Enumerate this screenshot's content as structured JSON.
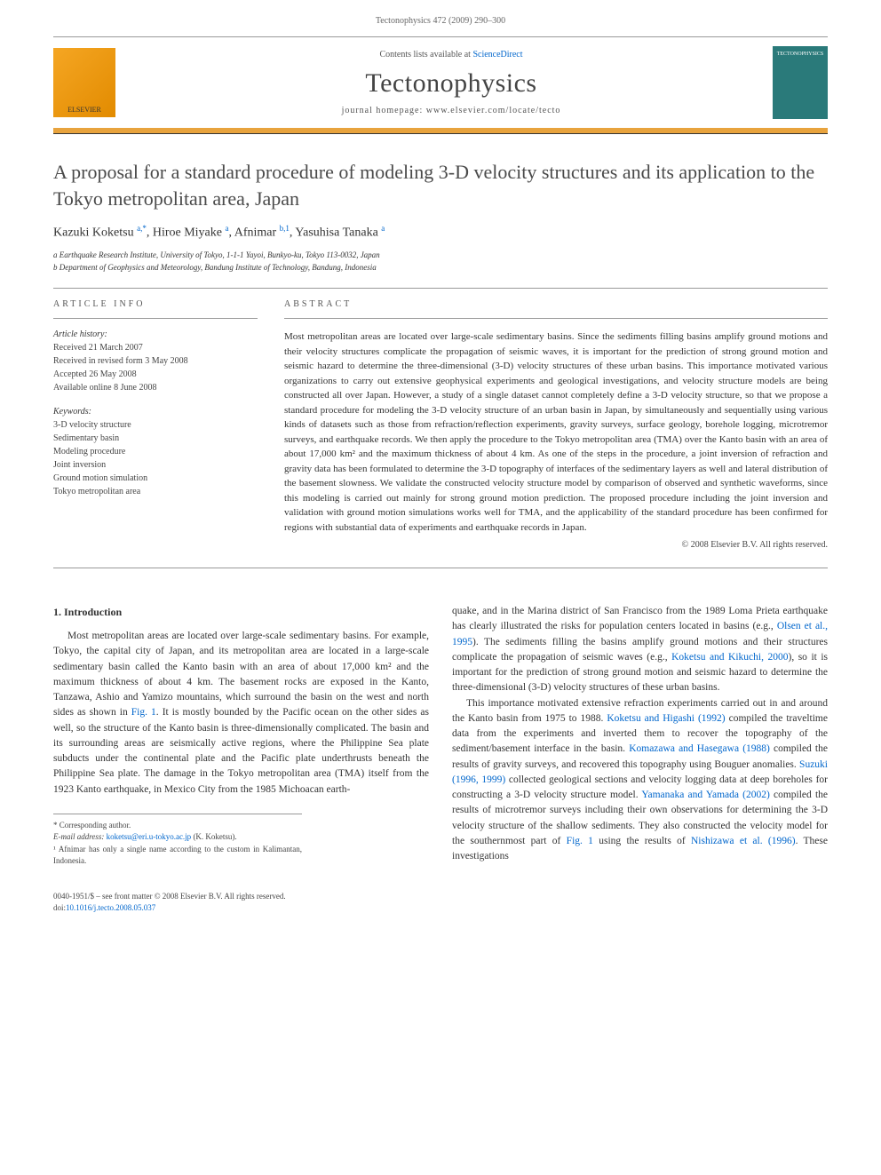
{
  "header": {
    "running_head": "Tectonophysics 472 (2009) 290–300"
  },
  "banner": {
    "elsevier_logo_label": "ELSEVIER",
    "contents_prefix": "Contents lists available at ",
    "contents_link": "ScienceDirect",
    "journal_name": "Tectonophysics",
    "homepage_prefix": "journal homepage: ",
    "homepage_url": "www.elsevier.com/locate/tecto",
    "cover_label": "TECTONOPHYSICS"
  },
  "article": {
    "title": "A proposal for a standard procedure of modeling 3-D velocity structures and its application to the Tokyo metropolitan area, Japan",
    "authors": [
      {
        "name": "Kazuki Koketsu",
        "sup": "a,*"
      },
      {
        "name": "Hiroe Miyake",
        "sup": "a"
      },
      {
        "name": "Afnimar",
        "sup": "b,1"
      },
      {
        "name": "Yasuhisa Tanaka",
        "sup": "a"
      }
    ],
    "affiliations": [
      "a Earthquake Research Institute, University of Tokyo, 1-1-1 Yayoi, Bunkyo-ku, Tokyo 113-0032, Japan",
      "b Department of Geophysics and Meteorology, Bandung Institute of Technology, Bandung, Indonesia"
    ]
  },
  "info": {
    "heading": "ARTICLE INFO",
    "history_label": "Article history:",
    "history": [
      "Received 21 March 2007",
      "Received in revised form 3 May 2008",
      "Accepted 26 May 2008",
      "Available online 8 June 2008"
    ],
    "keywords_label": "Keywords:",
    "keywords": [
      "3-D velocity structure",
      "Sedimentary basin",
      "Modeling procedure",
      "Joint inversion",
      "Ground motion simulation",
      "Tokyo metropolitan area"
    ]
  },
  "abstract": {
    "heading": "ABSTRACT",
    "text": "Most metropolitan areas are located over large-scale sedimentary basins. Since the sediments filling basins amplify ground motions and their velocity structures complicate the propagation of seismic waves, it is important for the prediction of strong ground motion and seismic hazard to determine the three-dimensional (3-D) velocity structures of these urban basins. This importance motivated various organizations to carry out extensive geophysical experiments and geological investigations, and velocity structure models are being constructed all over Japan. However, a study of a single dataset cannot completely define a 3-D velocity structure, so that we propose a standard procedure for modeling the 3-D velocity structure of an urban basin in Japan, by simultaneously and sequentially using various kinds of datasets such as those from refraction/reflection experiments, gravity surveys, surface geology, borehole logging, microtremor surveys, and earthquake records. We then apply the procedure to the Tokyo metropolitan area (TMA) over the Kanto basin with an area of about 17,000 km² and the maximum thickness of about 4 km. As one of the steps in the procedure, a joint inversion of refraction and gravity data has been formulated to determine the 3-D topography of interfaces of the sedimentary layers as well and lateral distribution of the basement slowness. We validate the constructed velocity structure model by comparison of observed and synthetic waveforms, since this modeling is carried out mainly for strong ground motion prediction. The proposed procedure including the joint inversion and validation with ground motion simulations works well for TMA, and the applicability of the standard procedure has been confirmed for regions with substantial data of experiments and earthquake records in Japan.",
    "copyright": "© 2008 Elsevier B.V. All rights reserved."
  },
  "body": {
    "section_heading": "1. Introduction",
    "col1_para1_a": "Most metropolitan areas are located over large-scale sedimentary basins. For example, Tokyo, the capital city of Japan, and its metropolitan area are located in a large-scale sedimentary basin called the Kanto basin with an area of about 17,000 km² and the maximum thickness of about 4 km. The basement rocks are exposed in the Kanto, Tanzawa, Ashio and Yamizo mountains, which surround the basin on the west and north sides as shown in ",
    "col1_fig1": "Fig. 1",
    "col1_para1_b": ". It is mostly bounded by the Pacific ocean on the other sides as well, so the structure of the Kanto basin is three-dimensionally complicated. The basin and its surrounding areas are seismically active regions, where the Philippine Sea plate subducts under the continental plate and the Pacific plate underthrusts beneath the Philippine Sea plate. The damage in the Tokyo metropolitan area (TMA) itself from the 1923 Kanto earthquake, in Mexico City from the 1985 Michoacan earth-",
    "col2_para1_a": "quake, and in the Marina district of San Francisco from the 1989 Loma Prieta earthquake has clearly illustrated the risks for population centers located in basins (e.g., ",
    "col2_ref1": "Olsen et al., 1995",
    "col2_para1_b": "). The sediments filling the basins amplify ground motions and their structures complicate the propagation of seismic waves (e.g., ",
    "col2_ref2": "Koketsu and Kikuchi, 2000",
    "col2_para1_c": "), so it is important for the prediction of strong ground motion and seismic hazard to determine the three-dimensional (3-D) velocity structures of these urban basins.",
    "col2_para2_a": "This importance motivated extensive refraction experiments carried out in and around the Kanto basin from 1975 to 1988. ",
    "col2_ref3": "Koketsu and Higashi (1992)",
    "col2_para2_b": " compiled the traveltime data from the experiments and inverted them to recover the topography of the sediment/basement interface in the basin. ",
    "col2_ref4": "Komazawa and Hasegawa (1988)",
    "col2_para2_c": " compiled the results of gravity surveys, and recovered this topography using Bouguer anomalies. ",
    "col2_ref5": "Suzuki (1996, 1999)",
    "col2_para2_d": " collected geological sections and velocity logging data at deep boreholes for constructing a 3-D velocity structure model. ",
    "col2_ref6": "Yamanaka and Yamada (2002)",
    "col2_para2_e": " compiled the results of microtremor surveys including their own observations for determining the 3-D velocity structure of the shallow sediments. They also constructed the velocity model for the southernmost part of ",
    "col2_fig1": "Fig. 1",
    "col2_para2_f": " using the results of ",
    "col2_ref7": "Nishizawa et al. (1996)",
    "col2_para2_g": ". These investigations"
  },
  "footnotes": {
    "corr_label": "* Corresponding author.",
    "email_label": "E-mail address: ",
    "email": "koketsu@eri.u-tokyo.ac.jp",
    "email_suffix": " (K. Koketsu).",
    "note1": "¹ Afnimar has only a single name according to the custom in Kalimantan, Indonesia."
  },
  "footer": {
    "issn_line": "0040-1951/$ – see front matter © 2008 Elsevier B.V. All rights reserved.",
    "doi_prefix": "doi:",
    "doi": "10.1016/j.tecto.2008.05.037"
  },
  "colors": {
    "link": "#0066cc",
    "orange_bar": "#e8a33d",
    "cover_bg": "#2a7a7a",
    "elsevier_bg": "#f5a623",
    "text": "#333333",
    "muted": "#666666"
  }
}
